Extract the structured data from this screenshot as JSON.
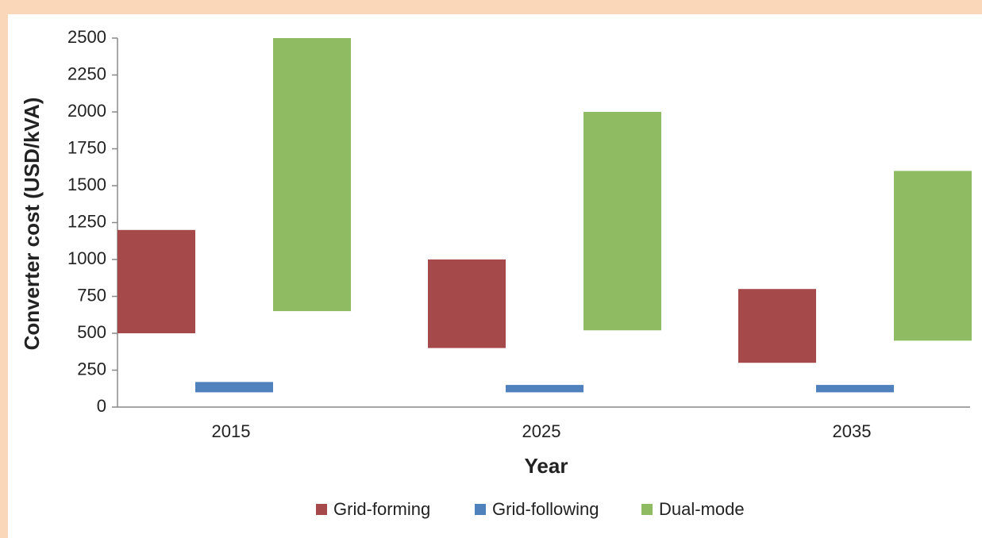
{
  "chart_data": {
    "type": "floating-bar",
    "categories": [
      "2015",
      "2025",
      "2035"
    ],
    "xlabel": "Year",
    "ylabel": "Converter cost (USD/kVA)",
    "series": [
      {
        "name": "Grid-forming",
        "color": "#a6494a",
        "low": [
          500,
          400,
          300
        ],
        "high": [
          1200,
          1000,
          800
        ]
      },
      {
        "name": "Grid-following",
        "color": "#4f81bd",
        "low": [
          100,
          100,
          100
        ],
        "high": [
          170,
          150,
          150
        ]
      },
      {
        "name": "Dual-mode",
        "color": "#8fbc62",
        "low": [
          650,
          520,
          450
        ],
        "high": [
          2500,
          2000,
          1600
        ]
      }
    ],
    "ylim": [
      0,
      2500
    ],
    "yticks": [
      0,
      250,
      500,
      750,
      1000,
      1250,
      1500,
      1750,
      2000,
      2250,
      2500
    ],
    "legend": "bottom"
  }
}
